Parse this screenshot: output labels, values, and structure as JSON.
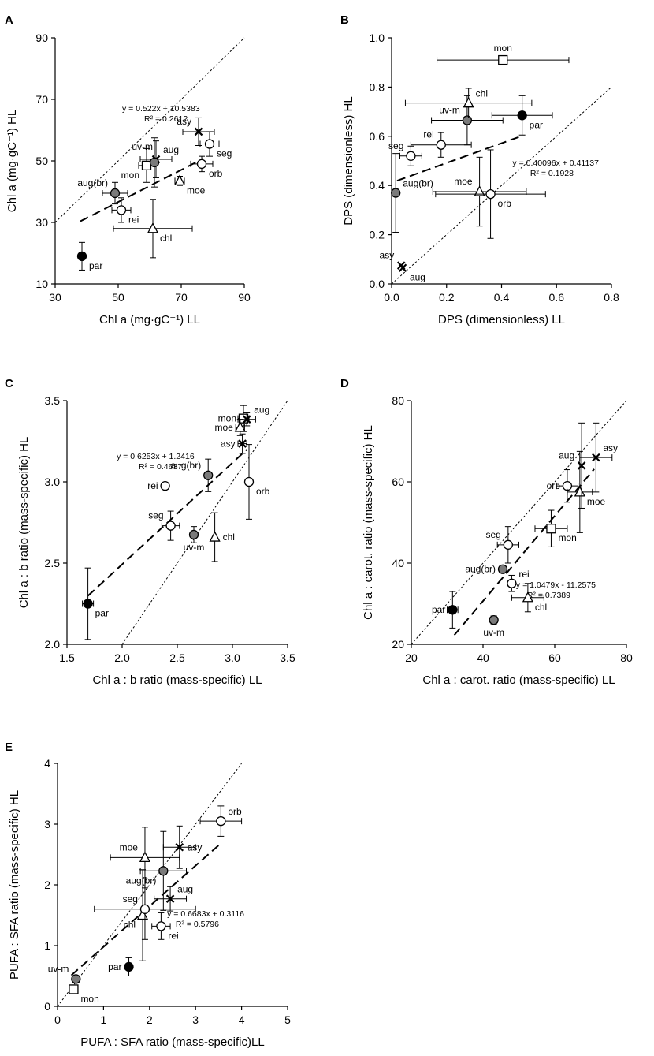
{
  "chart_data": [
    {
      "panel": "A",
      "type": "scatter",
      "xlabel": "Chl a (mg·gC⁻¹) LL",
      "ylabel": "Chl a (mg·gC⁻¹) HL",
      "xlim": [
        30,
        90
      ],
      "ylim": [
        10,
        90
      ],
      "xticks": [
        "30",
        "50",
        "70",
        "90"
      ],
      "yticks": [
        "10",
        "30",
        "50",
        "70",
        "90"
      ],
      "equation": "y = 0.522x + 10.5383",
      "r2": "R² = 0.2612",
      "fit": {
        "x0": 38,
        "x1": 77
      },
      "points": [
        {
          "label": "par",
          "x": 38.5,
          "y": 19,
          "marker": "filled",
          "xerr": 0,
          "yerr": 4.5,
          "lpos": "br"
        },
        {
          "label": "aug(br)",
          "x": 49,
          "y": 39.5,
          "marker": "grey",
          "xerr": 4,
          "yerr": 3.5,
          "lpos": "tl"
        },
        {
          "label": "rei",
          "x": 51,
          "y": 34,
          "marker": "circle",
          "xerr": 3,
          "yerr": 4,
          "lpos": "br"
        },
        {
          "label": "chl",
          "x": 61,
          "y": 28,
          "marker": "triangle",
          "xerr": 12.5,
          "yerr": 9.5,
          "lpos": "br"
        },
        {
          "label": "mon",
          "x": 59,
          "y": 48.5,
          "marker": "square",
          "xerr": 2.5,
          "yerr": 5.5,
          "lpos": "bl"
        },
        {
          "label": "aug",
          "x": 62,
          "y": 50.5,
          "marker": "cross",
          "xerr": 5,
          "yerr": 6,
          "lpos": "tr"
        },
        {
          "label": "uv-m",
          "x": 61.5,
          "y": 49.5,
          "marker": "grey",
          "xerr": 0,
          "yerr": 8,
          "lpos": "tl2"
        },
        {
          "label": "moe",
          "x": 69.5,
          "y": 43.5,
          "marker": "triangle",
          "xerr": 1.5,
          "yerr": 1.5,
          "lpos": "br"
        },
        {
          "label": "asy",
          "x": 75.5,
          "y": 59.5,
          "marker": "cross",
          "xerr": 5,
          "yerr": 4.5,
          "lpos": "tl"
        },
        {
          "label": "orb",
          "x": 76.5,
          "y": 49,
          "marker": "circle",
          "xerr": 3.5,
          "yerr": 2.5,
          "lpos": "br"
        },
        {
          "label": "seg",
          "x": 79,
          "y": 55.5,
          "marker": "circle",
          "xerr": 3,
          "yerr": 4,
          "lpos": "br"
        }
      ]
    },
    {
      "panel": "B",
      "type": "scatter",
      "xlabel": "DPS (dimensionless)  LL",
      "ylabel": "DPS (dimensionless)  HL",
      "xlim": [
        0,
        0.8
      ],
      "ylim": [
        0,
        1.0
      ],
      "xticks": [
        "0.0",
        "0.2",
        "0.4",
        "0.6",
        "0.8"
      ],
      "yticks": [
        "0.0",
        "0.2",
        "0.4",
        "0.6",
        "0.8",
        "1.0"
      ],
      "equation": "y = 0.40096x + 0.41137",
      "r2": "R² = 0.1928",
      "fit": {
        "x0": 0.02,
        "x1": 0.47
      },
      "points": [
        {
          "label": "asy",
          "x": 0.035,
          "y": 0.075,
          "marker": "cross",
          "xerr": 0,
          "yerr": 0,
          "lpos": "tl"
        },
        {
          "label": "aug",
          "x": 0.04,
          "y": 0.065,
          "marker": "cross",
          "xerr": 0,
          "yerr": 0,
          "lpos": "br"
        },
        {
          "label": "aug(br)",
          "x": 0.015,
          "y": 0.37,
          "marker": "grey",
          "xerr": 0,
          "yerr": 0.16,
          "lpos": "tr"
        },
        {
          "label": "seg",
          "x": 0.07,
          "y": 0.52,
          "marker": "circle",
          "xerr": 0.04,
          "yerr": 0.04,
          "lpos": "tl"
        },
        {
          "label": "rei",
          "x": 0.18,
          "y": 0.565,
          "marker": "circle",
          "xerr": 0.11,
          "yerr": 0.05,
          "lpos": "tl"
        },
        {
          "label": "uv-m",
          "x": 0.275,
          "y": 0.665,
          "marker": "grey",
          "xerr": 0.13,
          "yerr": 0.1,
          "lpos": "tl"
        },
        {
          "label": "chl",
          "x": 0.28,
          "y": 0.735,
          "marker": "triangle",
          "xerr": 0.23,
          "yerr": 0.06,
          "lpos": "tr"
        },
        {
          "label": "par",
          "x": 0.475,
          "y": 0.685,
          "marker": "filled",
          "xerr": 0.11,
          "yerr": 0.08,
          "lpos": "br"
        },
        {
          "label": "mon",
          "x": 0.405,
          "y": 0.91,
          "marker": "square",
          "xerr": 0.24,
          "yerr": 0,
          "lpos": "t"
        },
        {
          "label": "moe",
          "x": 0.32,
          "y": 0.375,
          "marker": "triangle",
          "xerr": 0.17,
          "yerr": 0.14,
          "lpos": "tl"
        },
        {
          "label": "orb",
          "x": 0.36,
          "y": 0.365,
          "marker": "circle",
          "xerr": 0.2,
          "yerr": 0.18,
          "lpos": "br"
        }
      ]
    },
    {
      "panel": "C",
      "type": "scatter",
      "xlabel": "Chl a : b ratio (mass-specific) LL",
      "ylabel": "Chl a : b ratio (mass-specific) HL",
      "xlim": [
        1.5,
        3.5
      ],
      "ylim": [
        2.0,
        3.5
      ],
      "xticks": [
        "1.5",
        "2.0",
        "2.5",
        "3.0",
        "3.5"
      ],
      "yticks": [
        "2.0",
        "2.5",
        "3.0",
        "3.5"
      ],
      "equation": "y = 0.6253x + 1.2416",
      "r2": "R² = 0.4637",
      "fit": {
        "x0": 1.69,
        "x1": 3.13
      },
      "points": [
        {
          "label": "par",
          "x": 1.69,
          "y": 2.25,
          "marker": "filled",
          "xerr": 0.05,
          "yerr": 0.22,
          "lpos": "br"
        },
        {
          "label": "seg",
          "x": 2.44,
          "y": 2.73,
          "marker": "circle",
          "xerr": 0.08,
          "yerr": 0.09,
          "lpos": "tl"
        },
        {
          "label": "rei",
          "x": 2.39,
          "y": 2.975,
          "marker": "circle",
          "xerr": 0.03,
          "yerr": 0.02,
          "lpos": "l"
        },
        {
          "label": "uv-m",
          "x": 2.65,
          "y": 2.675,
          "marker": "grey",
          "xerr": 0.02,
          "yerr": 0.05,
          "lpos": "b"
        },
        {
          "label": "chl",
          "x": 2.84,
          "y": 2.66,
          "marker": "triangle",
          "xerr": 0,
          "yerr": 0.15,
          "lpos": "r"
        },
        {
          "label": "aug(br)",
          "x": 2.78,
          "y": 3.04,
          "marker": "grey",
          "xerr": 0.02,
          "yerr": 0.1,
          "lpos": "tl"
        },
        {
          "label": "orb",
          "x": 3.15,
          "y": 3.0,
          "marker": "circle",
          "xerr": 0,
          "yerr": 0.23,
          "lpos": "br"
        },
        {
          "label": "mon",
          "x": 3.1,
          "y": 3.39,
          "marker": "square",
          "xerr": 0.05,
          "yerr": 0.08,
          "lpos": "l"
        },
        {
          "label": "aug",
          "x": 3.13,
          "y": 3.385,
          "marker": "cross",
          "xerr": 0.08,
          "yerr": 0.04,
          "lpos": "tr"
        },
        {
          "label": "moe",
          "x": 3.07,
          "y": 3.335,
          "marker": "triangle",
          "xerr": 0.04,
          "yerr": 0.05,
          "lpos": "l"
        },
        {
          "label": "asy",
          "x": 3.09,
          "y": 3.235,
          "marker": "cross",
          "xerr": 0.04,
          "yerr": 0.06,
          "lpos": "l"
        }
      ]
    },
    {
      "panel": "D",
      "type": "scatter",
      "xlabel": "Chl a : carot. ratio (mass-specific) LL",
      "ylabel": "Chl a : carot. ratio (mass-specific) HL",
      "xlim": [
        20,
        80
      ],
      "ylim": [
        20,
        80
      ],
      "xticks": [
        "20",
        "40",
        "60",
        "80"
      ],
      "yticks": [
        "20",
        "40",
        "60",
        "80"
      ],
      "equation": "y = 1.0479x - 11.2575",
      "r2": "R² = 0.7389",
      "fit": {
        "x0": 32,
        "x1": 71
      },
      "points": [
        {
          "label": "par",
          "x": 31.5,
          "y": 28.5,
          "marker": "filled",
          "xerr": 1.5,
          "yerr": 4.5,
          "lpos": "l"
        },
        {
          "label": "uv-m",
          "x": 43,
          "y": 26,
          "marker": "grey",
          "xerr": 1,
          "yerr": 1,
          "lpos": "b"
        },
        {
          "label": "chl",
          "x": 52.5,
          "y": 31.5,
          "marker": "triangle",
          "xerr": 4.5,
          "yerr": 3.5,
          "lpos": "br"
        },
        {
          "label": "aug(br)",
          "x": 45.5,
          "y": 38.5,
          "marker": "grey",
          "xerr": 1,
          "yerr": 0,
          "lpos": "l"
        },
        {
          "label": "rei",
          "x": 48,
          "y": 35,
          "marker": "circle",
          "xerr": 1,
          "yerr": 2,
          "lpos": "tr"
        },
        {
          "label": "seg",
          "x": 47,
          "y": 44.5,
          "marker": "circle",
          "xerr": 3,
          "yerr": 4.5,
          "lpos": "tl"
        },
        {
          "label": "mon",
          "x": 59,
          "y": 48.5,
          "marker": "square",
          "xerr": 4.5,
          "yerr": 4.5,
          "lpos": "br"
        },
        {
          "label": "orb",
          "x": 63.5,
          "y": 59,
          "marker": "circle",
          "xerr": 3,
          "yerr": 4,
          "lpos": "l"
        },
        {
          "label": "moe",
          "x": 67,
          "y": 57.5,
          "marker": "triangle",
          "xerr": 3.5,
          "yerr": 10,
          "lpos": "br"
        },
        {
          "label": "aug",
          "x": 67.5,
          "y": 64,
          "marker": "cross",
          "xerr": 0,
          "yerr": 10.5,
          "lpos": "tl"
        },
        {
          "label": "asy",
          "x": 71.5,
          "y": 66,
          "marker": "cross",
          "xerr": 4.5,
          "yerr": 8.5,
          "lpos": "tr"
        }
      ]
    },
    {
      "panel": "E",
      "type": "scatter",
      "xlabel": "PUFA : SFA ratio (mass-specific)LL",
      "ylabel": "PUFA : SFA ratio (mass-specific) HL",
      "xlim": [
        0,
        5
      ],
      "ylim": [
        0,
        4
      ],
      "xticks": [
        "0",
        "1",
        "2",
        "3",
        "4",
        "5"
      ],
      "yticks": [
        "0",
        "1",
        "2",
        "3",
        "4"
      ],
      "equation": "y = 0.6683x + 0.3116",
      "r2": "R² = 0.5796",
      "fit": {
        "x0": 0.3,
        "x1": 3.55
      },
      "points": [
        {
          "label": "uv-m",
          "x": 0.4,
          "y": 0.45,
          "marker": "grey",
          "xerr": 0,
          "yerr": 0,
          "lpos": "tl"
        },
        {
          "label": "mon",
          "x": 0.35,
          "y": 0.28,
          "marker": "square",
          "xerr": 0,
          "yerr": 0,
          "lpos": "br"
        },
        {
          "label": "par",
          "x": 1.55,
          "y": 0.65,
          "marker": "filled",
          "xerr": 0,
          "yerr": 0.15,
          "lpos": "l"
        },
        {
          "label": "chl",
          "x": 1.85,
          "y": 1.5,
          "marker": "triangle",
          "xerr": 0,
          "yerr": 0.75,
          "lpos": "bl"
        },
        {
          "label": "seg",
          "x": 1.9,
          "y": 1.6,
          "marker": "circle",
          "xerr": 1.1,
          "yerr": 0.5,
          "lpos": "tl"
        },
        {
          "label": "rei",
          "x": 2.25,
          "y": 1.32,
          "marker": "circle",
          "xerr": 0.2,
          "yerr": 0.22,
          "lpos": "br"
        },
        {
          "label": "aug",
          "x": 2.45,
          "y": 1.77,
          "marker": "cross",
          "xerr": 0.35,
          "yerr": 0.2,
          "lpos": "tr"
        },
        {
          "label": "aug(br)",
          "x": 2.3,
          "y": 2.23,
          "marker": "grey",
          "xerr": 0.5,
          "yerr": 0.65,
          "lpos": "bl"
        },
        {
          "label": "moe",
          "x": 1.9,
          "y": 2.45,
          "marker": "triangle",
          "xerr": 0.75,
          "yerr": 0.5,
          "lpos": "tl"
        },
        {
          "label": "asy",
          "x": 2.65,
          "y": 2.62,
          "marker": "cross",
          "xerr": 0.35,
          "yerr": 0.35,
          "lpos": "r"
        },
        {
          "label": "orb",
          "x": 3.55,
          "y": 3.05,
          "marker": "circle",
          "xerr": 0.45,
          "yerr": 0.25,
          "lpos": "tr"
        }
      ]
    }
  ]
}
